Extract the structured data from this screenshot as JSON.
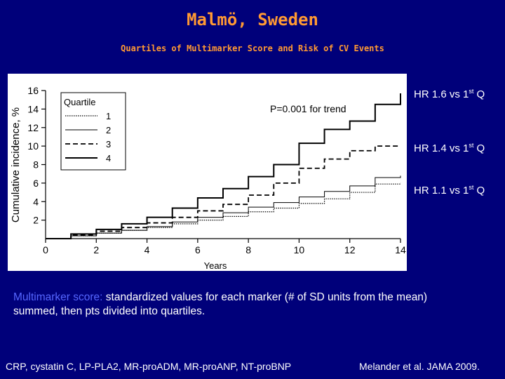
{
  "slide": {
    "title": "Malmö, Sweden",
    "subtitle": "Quartiles of Multimarker Score and Risk of CV Events"
  },
  "annotations": {
    "p_trend": "P=0.001 for trend",
    "hr_q4": {
      "text": "HR 1.6 vs 1",
      "sup": "st",
      "suffix": " Q"
    },
    "hr_q3": {
      "text": "HR 1.4 vs 1",
      "sup": "st",
      "suffix": " Q"
    },
    "hr_q2": {
      "text": "HR 1.1 vs 1",
      "sup": "st",
      "suffix": " Q"
    }
  },
  "description": {
    "term": "Multimarker score:",
    "text": " standardized values for each marker (# of SD units from the mean) summed, then pts divided into quartiles."
  },
  "footer": {
    "markers": "CRP, cystatin C, LP-PLA2, MR-pro​ADM, MR-pro​ANP, NT-pro​BNP",
    "citation": "Melander et al. JAMA 2009."
  },
  "chart_data": {
    "type": "line",
    "xlabel": "Years",
    "ylabel": "Cumulative incidence, %",
    "xlim": [
      0,
      14
    ],
    "ylim": [
      0,
      16
    ],
    "x_ticks": [
      0,
      2,
      4,
      6,
      8,
      10,
      12,
      14
    ],
    "y_ticks": [
      2,
      4,
      6,
      8,
      10,
      12,
      14,
      16
    ],
    "grid": false,
    "legend_title": "Quartile",
    "legend_position": "top-left",
    "series": [
      {
        "name": "1",
        "dash": "dotted",
        "x": [
          0,
          1,
          2,
          3,
          4,
          5,
          6,
          7,
          8,
          9,
          10,
          11,
          12,
          13,
          14
        ],
        "y": [
          0,
          0.3,
          0.6,
          0.9,
          1.2,
          1.6,
          2.0,
          2.4,
          2.9,
          3.3,
          3.8,
          4.3,
          5.0,
          5.9,
          6.0
        ]
      },
      {
        "name": "2",
        "dash": "solid-thin",
        "x": [
          0,
          1,
          2,
          3,
          4,
          5,
          6,
          7,
          8,
          9,
          10,
          11,
          12,
          13,
          14
        ],
        "y": [
          0,
          0.3,
          0.6,
          0.9,
          1.3,
          1.8,
          2.3,
          2.8,
          3.4,
          3.9,
          4.5,
          5.1,
          5.7,
          6.6,
          6.8
        ]
      },
      {
        "name": "3",
        "dash": "dashed",
        "x": [
          0,
          1,
          2,
          3,
          4,
          5,
          6,
          7,
          8,
          9,
          10,
          11,
          12,
          13,
          14
        ],
        "y": [
          0,
          0.4,
          0.8,
          1.2,
          1.7,
          2.3,
          3.0,
          3.7,
          4.7,
          6.0,
          7.6,
          8.6,
          9.5,
          10.0,
          10.0
        ]
      },
      {
        "name": "4",
        "dash": "solid-thick",
        "x": [
          0,
          1,
          2,
          3,
          4,
          5,
          6,
          7,
          8,
          9,
          10,
          11,
          12,
          13,
          14
        ],
        "y": [
          0,
          0.5,
          1.0,
          1.6,
          2.3,
          3.3,
          4.4,
          5.4,
          6.7,
          8.0,
          10.3,
          11.8,
          12.7,
          14.5,
          15.7
        ]
      }
    ]
  }
}
